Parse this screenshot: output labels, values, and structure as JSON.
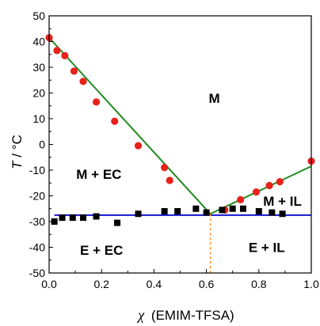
{
  "chart_data": {
    "type": "scatter",
    "xlabel": "χ (EMIM-TFSA)",
    "xlabel_symbol": "χ",
    "xlabel_text": "(EMIM-TFSA)",
    "ylabel": "T / °C",
    "ylabel_symbol": "T",
    "ylabel_unit": "°C",
    "xlim": [
      0.0,
      1.0
    ],
    "ylim": [
      -50,
      50
    ],
    "x_ticks": [
      0.0,
      0.2,
      0.4,
      0.6,
      0.8,
      1.0
    ],
    "x_tick_labels": [
      "0.0",
      "0.2",
      "0.4",
      "0.6",
      "0.8",
      "1.0"
    ],
    "y_ticks": [
      -50,
      -40,
      -30,
      -20,
      -10,
      0,
      10,
      20,
      30,
      40,
      50
    ],
    "y_tick_labels": [
      "-50",
      "-40",
      "-30",
      "-20",
      "-10",
      "0",
      "10",
      "20",
      "30",
      "40",
      "50"
    ],
    "grid": false,
    "series": [
      {
        "marker": "circle",
        "color": "#e8211a",
        "x": [
          0.0,
          0.03,
          0.06,
          0.095,
          0.13,
          0.18,
          0.25,
          0.34,
          0.44,
          0.46,
          0.67,
          0.73,
          0.79,
          0.84,
          0.88,
          1.0
        ],
        "y": [
          41.5,
          36.5,
          34.5,
          28.5,
          24.5,
          16.5,
          9,
          -0.5,
          -9,
          -14,
          -25.5,
          -21.5,
          -18.5,
          -16,
          -14.5,
          -6.5
        ]
      },
      {
        "marker": "square",
        "color": "#000000",
        "x": [
          0.02,
          0.05,
          0.09,
          0.13,
          0.18,
          0.26,
          0.34,
          0.44,
          0.49,
          0.56,
          0.6,
          0.66,
          0.7,
          0.74,
          0.8,
          0.85,
          0.89
        ],
        "y": [
          -30,
          -28.5,
          -28.5,
          -28.5,
          -28,
          -30.5,
          -27,
          -26,
          -26,
          -25,
          -26.5,
          -25.5,
          -25,
          -25,
          -26,
          -26.5,
          -27
        ]
      }
    ],
    "lines": [
      {
        "color": "#1f8a1f",
        "x": [
          0.0,
          0.615
        ],
        "y": [
          41.5,
          -27
        ]
      },
      {
        "color": "#1f8a1f",
        "x": [
          0.615,
          1.0
        ],
        "y": [
          -27,
          -8.5
        ]
      },
      {
        "color": "#1414d0",
        "x": [
          0.02,
          1.0
        ],
        "y": [
          -27.5,
          -27.5
        ]
      },
      {
        "color": "#ff8c1a",
        "dash": true,
        "x": [
          0.615,
          0.615
        ],
        "y": [
          -27,
          -50
        ]
      }
    ],
    "annotations": [
      {
        "text": "M",
        "x": 0.63,
        "y": 18
      },
      {
        "text": "M + EC",
        "x": 0.19,
        "y": -11.5
      },
      {
        "text": "M + IL",
        "x": 0.89,
        "y": -22
      },
      {
        "text": "E + EC",
        "x": 0.2,
        "y": -41
      },
      {
        "text": "E + IL",
        "x": 0.83,
        "y": -40
      }
    ]
  }
}
